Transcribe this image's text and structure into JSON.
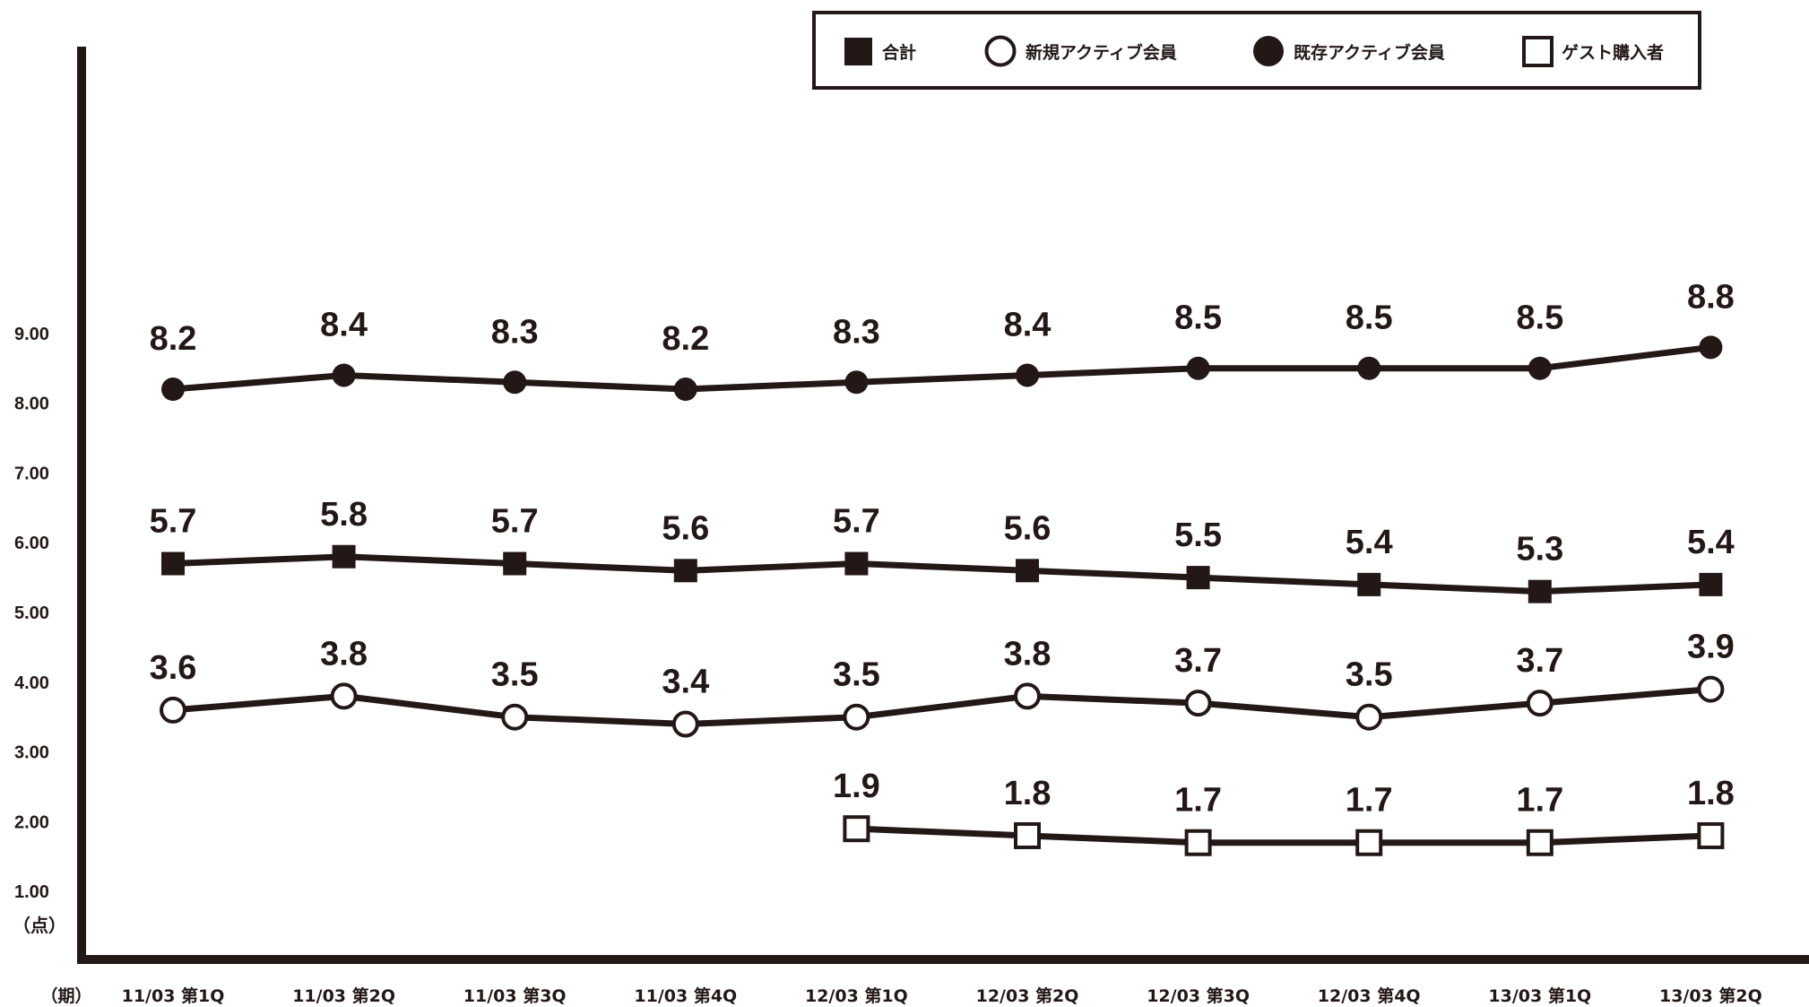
{
  "chart_data": {
    "type": "line",
    "categories": [
      "11/03 第1Q",
      "11/03 第2Q",
      "11/03 第3Q",
      "11/03 第4Q",
      "12/03 第1Q",
      "12/03 第2Q",
      "12/03 第3Q",
      "12/03 第4Q",
      "13/03 第1Q",
      "13/03 第2Q"
    ],
    "x_unit_label": "（期）",
    "y_unit_label": "（点）",
    "y_ticks": [
      "1.00",
      "2.00",
      "3.00",
      "4.00",
      "5.00",
      "6.00",
      "7.00",
      "8.00",
      "9.00"
    ],
    "ylim": [
      0,
      10
    ],
    "grid": false,
    "legend_position": "top-right",
    "series": [
      {
        "name": "合計",
        "marker": "square-filled",
        "values": [
          5.7,
          5.8,
          5.7,
          5.6,
          5.7,
          5.6,
          5.5,
          5.4,
          5.3,
          5.4
        ]
      },
      {
        "name": "新規アクティブ会員",
        "marker": "circle-open",
        "values": [
          3.6,
          3.8,
          3.5,
          3.4,
          3.5,
          3.8,
          3.7,
          3.5,
          3.7,
          3.9
        ]
      },
      {
        "name": "既存アクティブ会員",
        "marker": "circle-filled",
        "values": [
          8.2,
          8.4,
          8.3,
          8.2,
          8.3,
          8.4,
          8.5,
          8.5,
          8.5,
          8.8
        ]
      },
      {
        "name": "ゲスト購入者",
        "marker": "square-open",
        "values": [
          null,
          null,
          null,
          null,
          1.9,
          1.8,
          1.7,
          1.7,
          1.7,
          1.8
        ]
      }
    ],
    "colors": {
      "ink": "#231815",
      "background": "#ffffff"
    }
  }
}
